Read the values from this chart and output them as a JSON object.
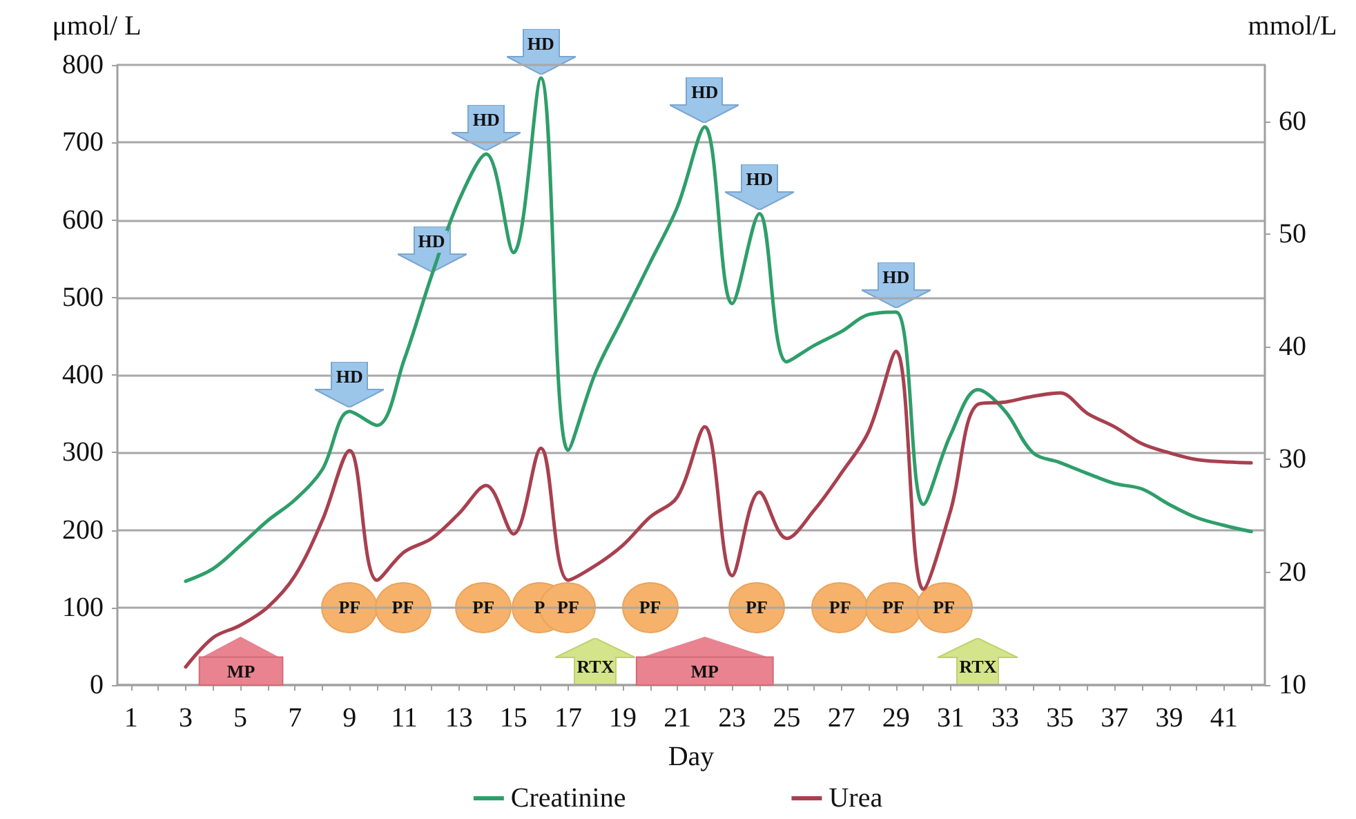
{
  "chart_data": {
    "type": "line",
    "xlabel": "Day",
    "ylabel": "μmol/ L",
    "y2label": "mmol/L",
    "x": [
      3,
      4,
      5,
      6,
      7,
      8,
      9,
      10,
      11,
      12,
      13,
      14,
      15,
      16,
      17,
      18,
      19,
      20,
      21,
      22,
      23,
      24,
      25,
      26,
      27,
      28,
      29,
      30,
      31,
      32,
      33,
      34,
      35,
      36,
      37,
      38,
      39,
      40,
      41,
      42
    ],
    "series": [
      {
        "name": "Creatinine",
        "color": "#2e9e6a",
        "values": [
          134,
          150,
          180,
          212,
          239,
          278,
          353,
          335,
          420,
          528,
          625,
          685,
          558,
          783,
          303,
          403,
          474,
          545,
          617,
          720,
          492,
          608,
          417,
          438,
          456,
          478,
          481,
          233,
          323,
          381,
          353,
          300,
          287,
          273,
          260,
          253,
          233,
          216,
          206,
          198
        ]
      },
      {
        "name": "Urea",
        "color": "#a8404f",
        "axis": "y2",
        "values": [
          11.6,
          14.2,
          15.3,
          16.9,
          19.7,
          24.6,
          30.8,
          19.3,
          21.8,
          23.0,
          25.2,
          27.7,
          23.4,
          31.0,
          19.3,
          20.6,
          22.4,
          24.9,
          26.7,
          32.9,
          19.7,
          27.1,
          23.0,
          25.5,
          28.8,
          32.5,
          39.6,
          18.5,
          25.5,
          34.9,
          35.1,
          35.6,
          35.9,
          34.1,
          32.9,
          31.4,
          30.6,
          30.0,
          29.8,
          29.7
        ]
      }
    ],
    "xlim": [
      0.5,
      42.5
    ],
    "xticks": [
      1,
      {
        "value": 2,
        "label": null
      },
      3,
      {
        "value": 4,
        "label": null
      },
      5,
      {
        "value": 6,
        "label": null
      },
      7,
      {
        "value": 8,
        "label": null
      },
      9,
      {
        "value": 10,
        "label": null
      },
      11,
      {
        "value": 12,
        "label": null
      },
      13,
      {
        "value": 14,
        "label": null
      },
      15,
      {
        "value": 16,
        "label": null
      },
      17,
      {
        "value": 18,
        "label": null
      },
      19,
      {
        "value": 20,
        "label": null
      },
      21,
      {
        "value": 22,
        "label": null
      },
      23,
      {
        "value": 24,
        "label": null
      },
      25,
      {
        "value": 26,
        "label": null
      },
      27,
      {
        "value": 28,
        "label": null
      },
      29,
      {
        "value": 30,
        "label": null
      },
      31,
      {
        "value": 32,
        "label": null
      },
      33,
      {
        "value": 34,
        "label": null
      },
      35,
      {
        "value": 36,
        "label": null
      },
      37,
      {
        "value": 38,
        "label": null
      },
      39,
      {
        "value": 40,
        "label": null
      },
      41,
      {
        "value": 42,
        "label": null
      }
    ],
    "ylim": [
      0,
      800
    ],
    "yticks": [
      0,
      100,
      200,
      300,
      400,
      500,
      600,
      700,
      800
    ],
    "y2lim": [
      10,
      65
    ],
    "y2ticks": [
      10,
      20,
      30,
      40,
      50,
      60
    ],
    "grid": "y",
    "legend": "bottom",
    "marker": "none",
    "line_style": "solid",
    "bands": [
      {
        "axis": "x",
        "from": 3.5,
        "to": 6.55,
        "label": "MP",
        "color": "#e8838f"
      },
      {
        "axis": "x",
        "from": 19.5,
        "to": 24.5,
        "label": "MP",
        "color": "#e8838f"
      }
    ],
    "annotations": [
      {
        "text": "HD",
        "x": 9,
        "y": 353
      },
      {
        "text": "HD",
        "x": 12,
        "y": 528
      },
      {
        "text": "HD",
        "x": 14,
        "y": 685
      },
      {
        "text": "HD",
        "x": 16,
        "y": 783
      },
      {
        "text": "HD",
        "x": 22,
        "y": 720
      },
      {
        "text": "HD",
        "x": 24,
        "y": 608
      },
      {
        "text": "HD",
        "x": 29,
        "y": 481
      },
      {
        "text": "PF",
        "x": 9,
        "y": 100
      },
      {
        "text": "PF",
        "x": 10.95,
        "y": 100
      },
      {
        "text": "PF",
        "x": 13.9,
        "y": 100
      },
      {
        "text": "P",
        "x": 15.95,
        "y": 100
      },
      {
        "text": "PF",
        "x": 17,
        "y": 100
      },
      {
        "text": "PF",
        "x": 20,
        "y": 100
      },
      {
        "text": "PF",
        "x": 23.9,
        "y": 100
      },
      {
        "text": "PF",
        "x": 26.95,
        "y": 100
      },
      {
        "text": "PF",
        "x": 28.9,
        "y": 100
      },
      {
        "text": "PF",
        "x": 30.75,
        "y": 100
      },
      "RTX",
      "RTX"
    ]
  }
}
